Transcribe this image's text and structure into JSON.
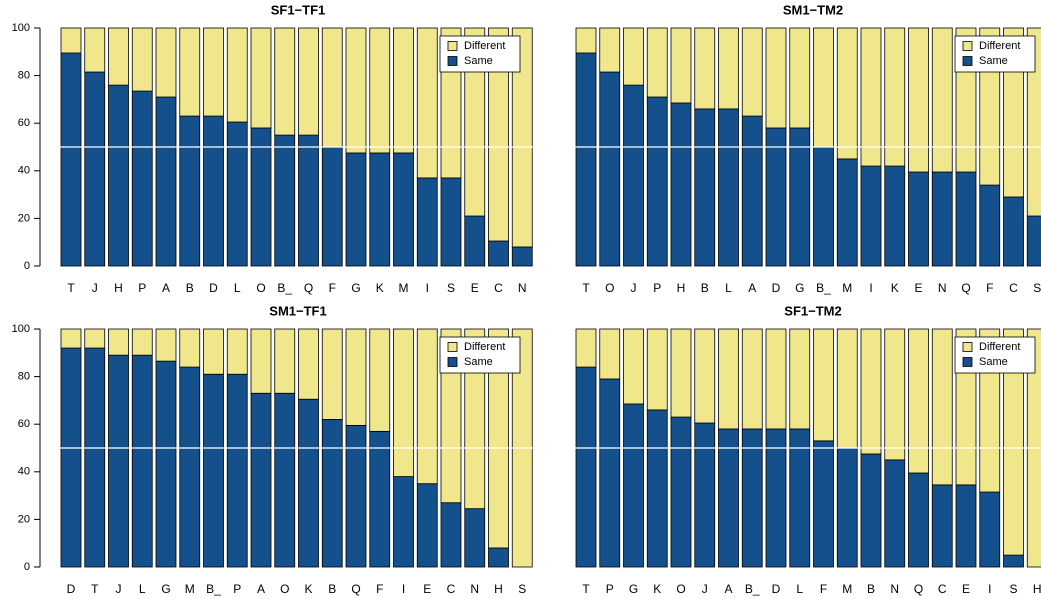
{
  "chart_data": [
    {
      "type": "bar",
      "stacked": true,
      "title": "SF1−TF1",
      "categories": [
        "T",
        "J",
        "H",
        "P",
        "A",
        "B",
        "D",
        "L",
        "O",
        "B_",
        "Q",
        "F",
        "G",
        "K",
        "M",
        "I",
        "S",
        "E",
        "C",
        "N"
      ],
      "series": [
        {
          "name": "Different",
          "color": "#f0e68c",
          "values": [
            10.5,
            18.5,
            24,
            26.5,
            29,
            37,
            37,
            39.5,
            42,
            45,
            45,
            50,
            52.5,
            52.5,
            52.5,
            63,
            63,
            79,
            89.5,
            92
          ]
        },
        {
          "name": "Same",
          "color": "#14508c",
          "values": [
            89.5,
            81.5,
            76,
            73.5,
            71,
            63,
            63,
            60.5,
            58,
            55,
            55,
            50,
            47.5,
            47.5,
            47.5,
            37,
            37,
            21,
            10.5,
            8
          ]
        }
      ],
      "ylim": [
        0,
        100
      ],
      "yticks": [
        0,
        20,
        40,
        60,
        80,
        100
      ],
      "reference_line": 50,
      "legend": "topright"
    },
    {
      "type": "bar",
      "stacked": true,
      "title": "SM1−TM2",
      "categories": [
        "T",
        "O",
        "J",
        "P",
        "H",
        "B",
        "L",
        "A",
        "D",
        "G",
        "B_",
        "M",
        "I",
        "K",
        "E",
        "N",
        "Q",
        "F",
        "C",
        "S"
      ],
      "series": [
        {
          "name": "Different",
          "color": "#f0e68c",
          "values": [
            10.5,
            18.5,
            24,
            29,
            31.5,
            34,
            34,
            37,
            42,
            42,
            50,
            55,
            58,
            58,
            60.5,
            60.5,
            60.5,
            66,
            71,
            79
          ]
        },
        {
          "name": "Same",
          "color": "#14508c",
          "values": [
            89.5,
            81.5,
            76,
            71,
            68.5,
            66,
            66,
            63,
            58,
            58,
            50,
            45,
            42,
            42,
            39.5,
            39.5,
            39.5,
            34,
            29,
            21
          ]
        }
      ],
      "ylim": [
        0,
        100
      ],
      "reference_line": 50,
      "legend": "topright"
    },
    {
      "type": "bar",
      "stacked": true,
      "title": "SM1−TF1",
      "categories": [
        "D",
        "T",
        "J",
        "L",
        "G",
        "M",
        "B_",
        "P",
        "A",
        "O",
        "K",
        "B",
        "Q",
        "F",
        "I",
        "E",
        "C",
        "N",
        "H",
        "S"
      ],
      "series": [
        {
          "name": "Different",
          "color": "#f0e68c",
          "values": [
            8,
            8,
            11,
            11,
            13.5,
            16,
            19,
            19,
            27,
            27,
            29.5,
            38,
            40.5,
            43,
            62,
            65,
            73,
            75.5,
            92,
            100
          ]
        },
        {
          "name": "Same",
          "color": "#14508c",
          "values": [
            92,
            92,
            89,
            89,
            86.5,
            84,
            81,
            81,
            73,
            73,
            70.5,
            62,
            59.5,
            57,
            38,
            35,
            27,
            24.5,
            8,
            0
          ]
        }
      ],
      "ylim": [
        0,
        100
      ],
      "yticks": [
        0,
        20,
        40,
        60,
        80,
        100
      ],
      "reference_line": 50,
      "legend": "topright"
    },
    {
      "type": "bar",
      "stacked": true,
      "title": "SF1−TM2",
      "categories": [
        "T",
        "P",
        "G",
        "K",
        "O",
        "J",
        "A",
        "B_",
        "D",
        "L",
        "F",
        "M",
        "B",
        "N",
        "Q",
        "C",
        "E",
        "I",
        "S",
        "H"
      ],
      "series": [
        {
          "name": "Different",
          "color": "#f0e68c",
          "values": [
            16,
            21,
            31.5,
            34,
            37,
            39.5,
            42,
            42,
            42,
            42,
            47,
            50,
            52.5,
            55,
            60.5,
            65.5,
            65.5,
            68.5,
            95,
            100
          ]
        },
        {
          "name": "Same",
          "color": "#14508c",
          "values": [
            84,
            79,
            68.5,
            66,
            63,
            60.5,
            58,
            58,
            58,
            58,
            53,
            50,
            47.5,
            45,
            39.5,
            34.5,
            34.5,
            31.5,
            5,
            0
          ]
        }
      ],
      "ylim": [
        0,
        100
      ],
      "reference_line": 50,
      "legend": "topright"
    }
  ]
}
